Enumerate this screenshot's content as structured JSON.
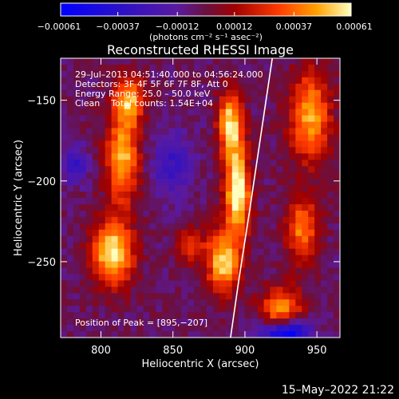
{
  "chart_data": {
    "type": "heatmap",
    "title": "Reconstructed RHESSI Image",
    "xlabel": "Heliocentric X (arcsec)",
    "ylabel": "Heliocentric Y (arcsec)",
    "xlim": [
      772,
      966
    ],
    "ylim": [
      -297,
      -124
    ],
    "x_ticks": [
      800,
      850,
      900,
      950
    ],
    "x_tick_labels": [
      "800",
      "850",
      "900",
      "950"
    ],
    "y_ticks": [
      -150,
      -200,
      -250
    ],
    "y_tick_labels": [
      "−150",
      "−200",
      "−250"
    ],
    "colorbar": {
      "range": [
        -0.00061,
        0.00061
      ],
      "ticks": [
        -0.00061,
        -0.00037,
        -0.00012,
        0.00012,
        0.00037,
        0.00061
      ],
      "tick_labels": [
        "−0.00061",
        "−0.00037",
        "−0.00012",
        "0.00012",
        "0.00037",
        "0.00061"
      ],
      "units": "(photons cm⁻² s⁻¹ asec⁻²)"
    },
    "annotations": {
      "time": "29–Jul–2013 04:51:40.000 to 04:56:24.000",
      "detectors": "Detectors: 3F 4F 5F 6F 7F 8F, Att 0",
      "energy": "Energy Range: 25.0 – 50.0 keV",
      "clean": "Clean    Total counts: 1.54E+04",
      "peak": "Position of Peak = [895,−207]"
    },
    "peak_position": [
      895,
      -207
    ],
    "limb_curve": [
      [
        919,
        -124
      ],
      [
        913,
        -160
      ],
      [
        903,
        -220
      ],
      [
        896,
        -260
      ],
      [
        890,
        -297
      ]
    ],
    "sources": [
      {
        "x": 895,
        "y": -207,
        "sx": 6,
        "sy": 18,
        "amp": 1.0
      },
      {
        "x": 890,
        "y": -165,
        "sx": 6,
        "sy": 14,
        "amp": 0.85
      },
      {
        "x": 885,
        "y": -250,
        "sx": 8,
        "sy": 14,
        "amp": 0.8
      },
      {
        "x": 808,
        "y": -245,
        "sx": 10,
        "sy": 14,
        "amp": 0.9
      },
      {
        "x": 815,
        "y": -185,
        "sx": 8,
        "sy": 20,
        "amp": 0.75
      },
      {
        "x": 820,
        "y": -150,
        "sx": 7,
        "sy": 10,
        "amp": 0.65
      },
      {
        "x": 925,
        "y": -280,
        "sx": 10,
        "sy": 10,
        "amp": 0.7
      },
      {
        "x": 940,
        "y": -230,
        "sx": 8,
        "sy": 14,
        "amp": 0.6
      },
      {
        "x": 945,
        "y": -160,
        "sx": 10,
        "sy": 20,
        "amp": 0.7
      },
      {
        "x": 862,
        "y": -240,
        "sx": 7,
        "sy": 8,
        "amp": 0.45
      }
    ],
    "negative_sources": [
      {
        "x": 928,
        "y": -294,
        "sx": 12,
        "sy": 6,
        "amp": 0.9
      },
      {
        "x": 782,
        "y": -190,
        "sx": 6,
        "sy": 8,
        "amp": 0.4
      },
      {
        "x": 850,
        "y": -190,
        "sx": 10,
        "sy": 14,
        "amp": 0.35
      }
    ]
  },
  "footer": {
    "date": "15–May–2022 21:22"
  }
}
